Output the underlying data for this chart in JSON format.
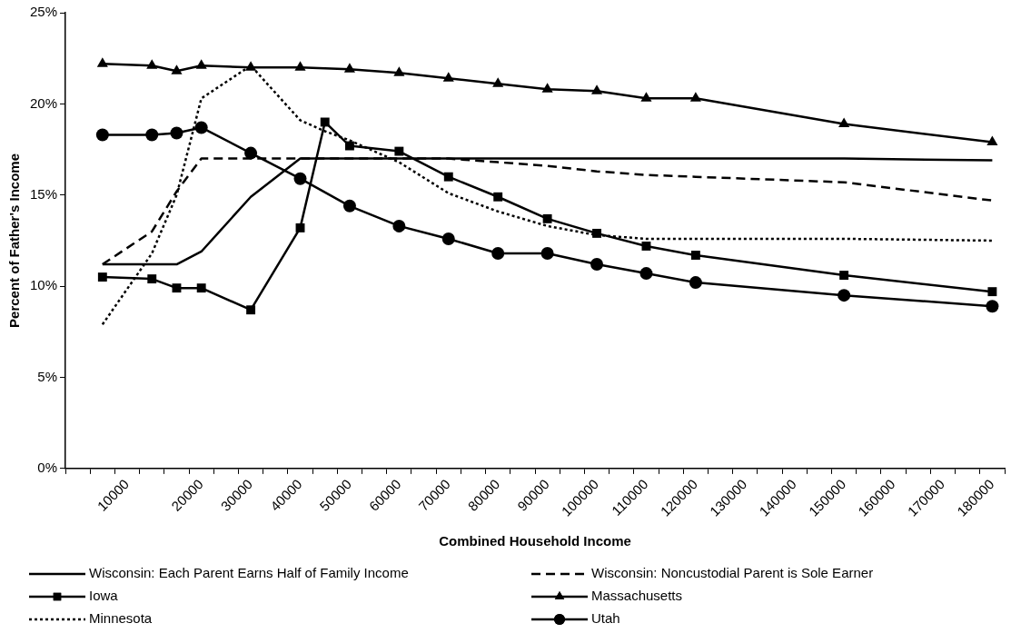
{
  "chart_data": {
    "type": "line",
    "xlabel": "Combined Household Income",
    "ylabel": "Percent of Father's Income",
    "categories": [
      null,
      null,
      "10000",
      null,
      null,
      "20000",
      null,
      "30000",
      null,
      "40000",
      null,
      "50000",
      null,
      "60000",
      null,
      "70000",
      null,
      "80000",
      null,
      "90000",
      null,
      "100000",
      null,
      "110000",
      null,
      "120000",
      null,
      "130000",
      null,
      "140000",
      null,
      "150000",
      null,
      "160000",
      null,
      "170000",
      null,
      "180000"
    ],
    "ylim": [
      0,
      25
    ],
    "yticks": [
      {
        "value": 0,
        "label": "0%"
      },
      {
        "value": 5,
        "label": "5%"
      },
      {
        "value": 10,
        "label": "10%"
      },
      {
        "value": 15,
        "label": "15%"
      },
      {
        "value": 20,
        "label": "20%"
      },
      {
        "value": 25,
        "label": "25%"
      }
    ],
    "grid": false,
    "legend": "bottom",
    "series": [
      {
        "name": "Wisconsin: Each Parent Earns Half of Family Income",
        "color": "#000000",
        "marker": "none",
        "line_style": "solid",
        "values": [
          null,
          11.2,
          null,
          11.2,
          11.2,
          11.9,
          null,
          14.9,
          null,
          17.0,
          null,
          17.0,
          null,
          17.0,
          null,
          17.0,
          null,
          17.0,
          null,
          17.0,
          null,
          17.0,
          null,
          17.0,
          null,
          17.0,
          null,
          null,
          null,
          null,
          null,
          17.0,
          null,
          null,
          null,
          null,
          null,
          16.9
        ]
      },
      {
        "name": "Wisconsin: Noncustodial Parent is Sole Earner",
        "color": "#000000",
        "marker": "none",
        "line_style": "dashed",
        "values": [
          null,
          11.2,
          null,
          13.0,
          15.2,
          17.0,
          null,
          17.0,
          null,
          17.0,
          null,
          17.0,
          null,
          17.0,
          null,
          17.0,
          null,
          16.8,
          null,
          16.6,
          null,
          16.3,
          null,
          16.1,
          null,
          16.0,
          null,
          null,
          null,
          null,
          null,
          15.7,
          null,
          null,
          null,
          null,
          null,
          14.7
        ]
      },
      {
        "name": "Iowa",
        "color": "#000000",
        "marker": "square",
        "line_style": "solid",
        "values": [
          null,
          10.5,
          null,
          10.4,
          9.9,
          9.9,
          null,
          8.7,
          null,
          13.2,
          19.0,
          17.7,
          null,
          17.4,
          null,
          16.0,
          null,
          14.9,
          null,
          13.7,
          null,
          12.9,
          null,
          12.2,
          null,
          11.7,
          null,
          null,
          null,
          null,
          null,
          10.6,
          null,
          null,
          null,
          null,
          null,
          9.7
        ]
      },
      {
        "name": "Massachusetts",
        "color": "#000000",
        "marker": "triangle",
        "line_style": "solid",
        "values": [
          null,
          22.2,
          null,
          22.1,
          21.8,
          22.1,
          null,
          22.0,
          null,
          22.0,
          null,
          21.9,
          null,
          21.7,
          null,
          21.4,
          null,
          21.1,
          null,
          20.8,
          null,
          20.7,
          null,
          20.3,
          null,
          20.3,
          null,
          null,
          null,
          null,
          null,
          18.9,
          null,
          null,
          null,
          null,
          null,
          17.9
        ]
      },
      {
        "name": "Minnesota",
        "color": "#000000",
        "marker": "none",
        "line_style": "dotted",
        "values": [
          null,
          7.9,
          null,
          11.8,
          15.0,
          20.3,
          null,
          22.1,
          null,
          19.1,
          18.5,
          18.0,
          null,
          16.8,
          null,
          15.1,
          null,
          14.1,
          null,
          13.3,
          null,
          12.8,
          null,
          12.6,
          null,
          12.6,
          null,
          null,
          null,
          null,
          null,
          12.6,
          null,
          null,
          null,
          null,
          null,
          12.5
        ]
      },
      {
        "name": "Utah",
        "color": "#000000",
        "marker": "circle",
        "line_style": "solid",
        "values": [
          null,
          18.3,
          null,
          18.3,
          18.4,
          18.7,
          null,
          17.3,
          null,
          15.9,
          null,
          14.4,
          null,
          13.3,
          null,
          12.6,
          null,
          11.8,
          null,
          11.8,
          null,
          11.2,
          null,
          10.7,
          null,
          10.2,
          null,
          null,
          null,
          null,
          null,
          9.5,
          null,
          null,
          null,
          null,
          null,
          8.9
        ]
      }
    ]
  }
}
